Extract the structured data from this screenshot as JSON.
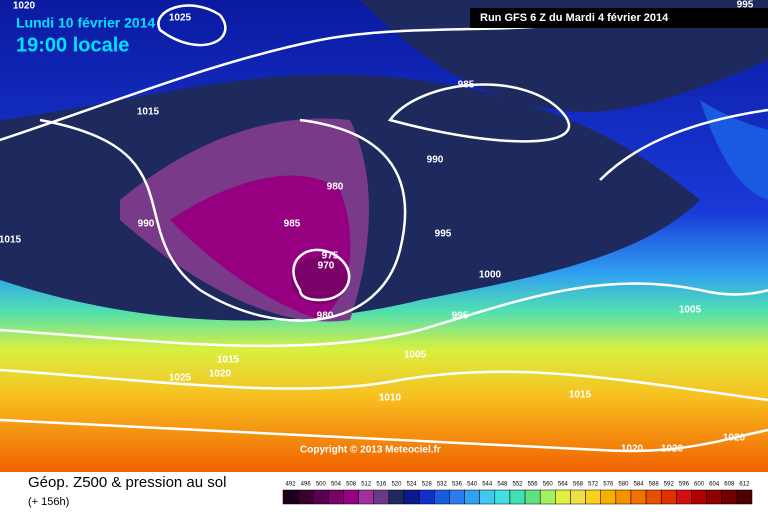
{
  "header": {
    "date": "Lundi 10 février 2014",
    "time": "19:00 locale",
    "run": "Run GFS 6 Z du Mardi 4 février 2014"
  },
  "map": {
    "isobar_labels": [
      1020,
      1025,
      995,
      985,
      1015,
      990,
      980,
      990,
      985,
      995,
      1015,
      975,
      970,
      1000,
      980,
      995,
      1005,
      1015,
      1020,
      1025,
      1005,
      1010,
      1015,
      1020,
      1020,
      1020
    ]
  },
  "copyright": "Copyright © 2013 Meteociel.fr",
  "footer": {
    "title": "Géop. Z500 & pression au sol",
    "lead": "(+ 156h)"
  },
  "legend": {
    "values": [
      492,
      496,
      500,
      504,
      508,
      512,
      516,
      520,
      524,
      528,
      532,
      536,
      540,
      544,
      548,
      552,
      556,
      560,
      564,
      568,
      572,
      576,
      580,
      584,
      588,
      592,
      596,
      600,
      604,
      608,
      612
    ],
    "colors": [
      "#1a0018",
      "#3a0030",
      "#5a0050",
      "#7a006a",
      "#960080",
      "#a0309a",
      "#6a3a8a",
      "#1e2a5e",
      "#0a1a8a",
      "#1030c8",
      "#1a5ae0",
      "#2a7af0",
      "#30a0f0",
      "#40c8f0",
      "#40e0e0",
      "#40e0b0",
      "#60e080",
      "#a0f060",
      "#e0f040",
      "#f0e040",
      "#f8d020",
      "#f8b000",
      "#f89000",
      "#f07000",
      "#e85000",
      "#e03000",
      "#d01010",
      "#b00000",
      "#900000",
      "#700000",
      "#500000"
    ]
  }
}
